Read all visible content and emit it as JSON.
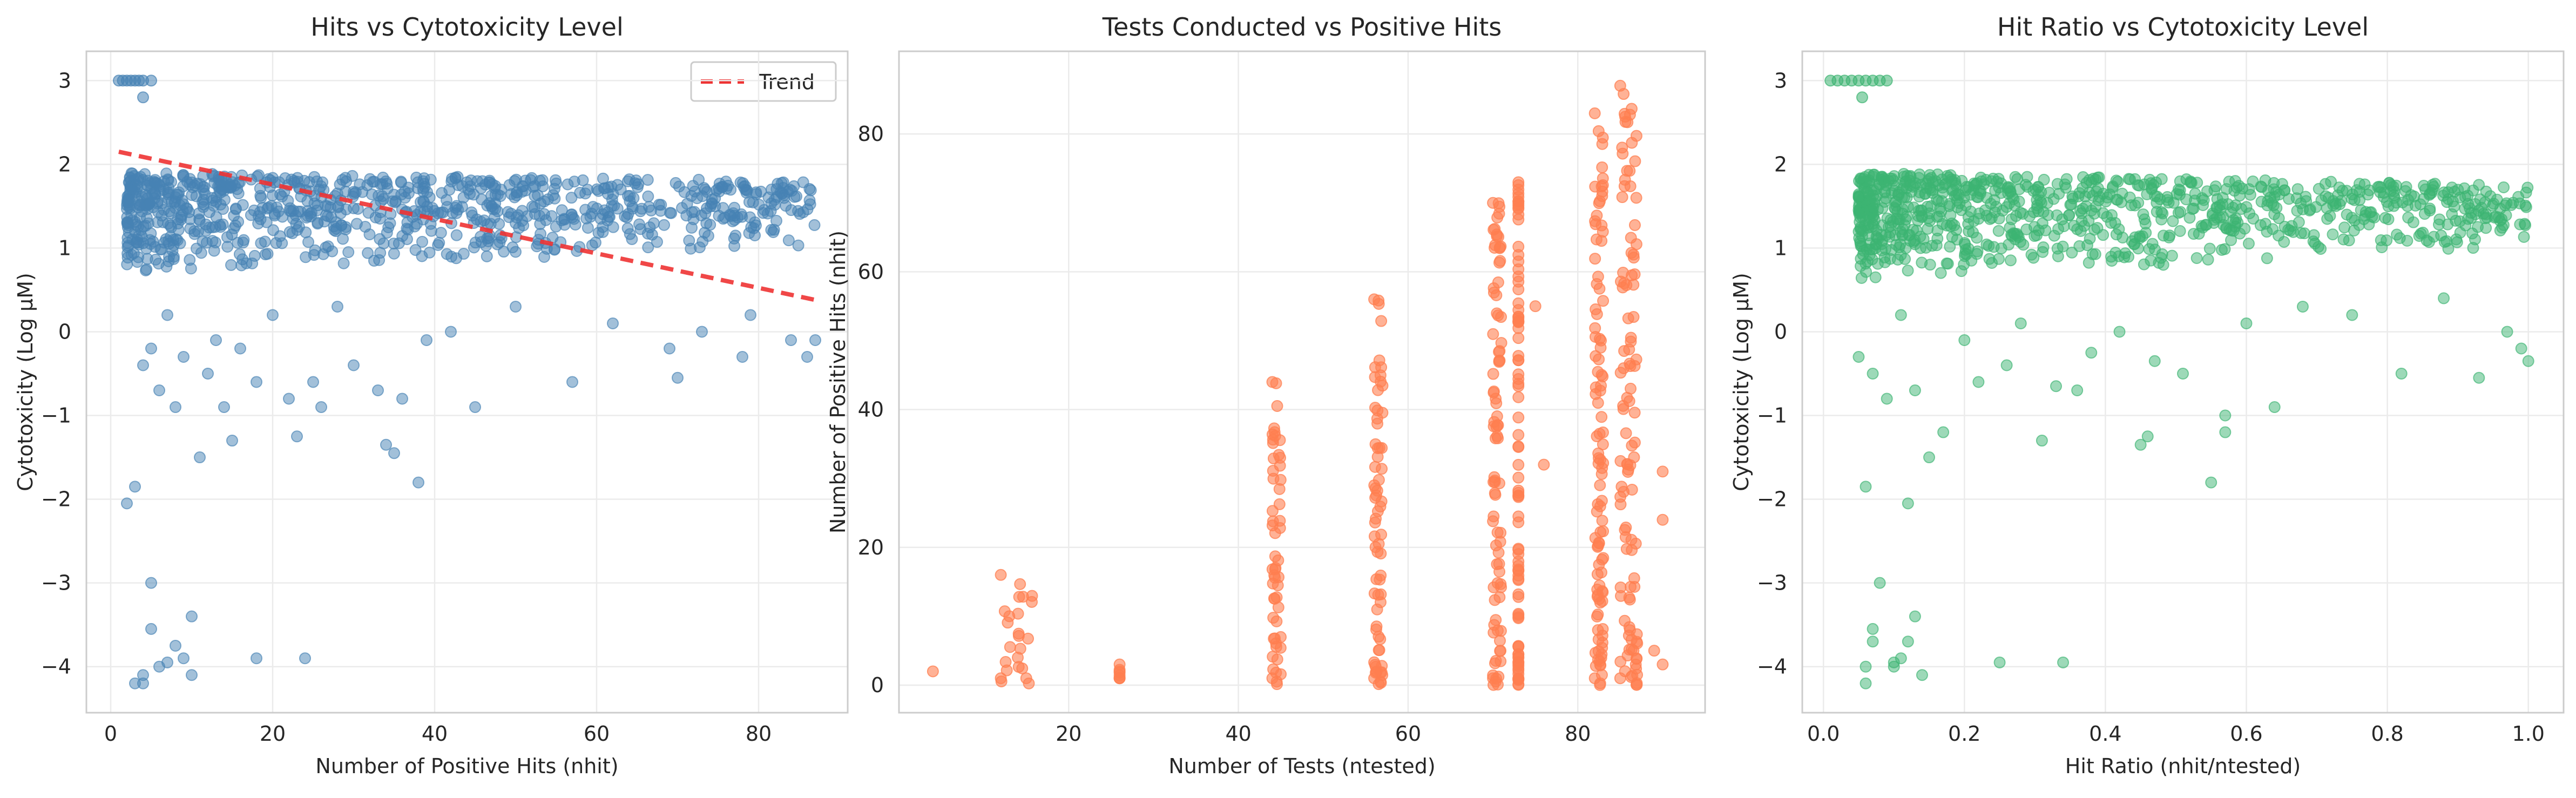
{
  "chart_data": [
    {
      "type": "scatter",
      "title": "Hits vs Cytotoxicity Level",
      "xlabel": "Number of Positive Hits (nhit)",
      "ylabel": "Cytotoxicity (Log µM)",
      "xlim": [
        -3,
        91
      ],
      "ylim": [
        -4.55,
        3.35
      ],
      "xticks": [
        0,
        20,
        40,
        60,
        80
      ],
      "yticks": [
        -4,
        -3,
        -2,
        -1,
        0,
        1,
        2,
        3
      ],
      "grid": true,
      "legend_position": "top-right",
      "point_color": "#4682b4",
      "trend": {
        "name": "Trend",
        "color": "#ee3333",
        "x": [
          1,
          87
        ],
        "y": [
          2.15,
          0.38
        ]
      },
      "points": {
        "capped_top": [
          [
            1,
            3
          ],
          [
            1.5,
            3
          ],
          [
            2,
            3
          ],
          [
            2.5,
            3
          ],
          [
            3,
            3
          ],
          [
            3.5,
            3
          ],
          [
            4,
            3
          ],
          [
            5,
            3
          ],
          [
            4,
            2.8
          ]
        ],
        "cloud": [
          {
            "x_min": 2,
            "x_max": 87,
            "y_top": [
              1.9,
              1.8
            ],
            "y_bottom": [
              0.7,
              1.0
            ]
          }
        ],
        "low_outliers": [
          [
            2,
            -2.05
          ],
          [
            3,
            -1.85
          ],
          [
            4,
            -4.1
          ],
          [
            5,
            -3.0
          ],
          [
            5,
            -3.55
          ],
          [
            3,
            -4.2
          ],
          [
            4,
            -4.2
          ],
          [
            6,
            -4.0
          ],
          [
            7,
            -3.95
          ],
          [
            8,
            -3.75
          ],
          [
            9,
            -3.9
          ],
          [
            10,
            -3.4
          ],
          [
            10,
            -4.1
          ],
          [
            18,
            -3.9
          ],
          [
            24,
            -3.9
          ],
          [
            38,
            -1.8
          ],
          [
            34,
            -1.35
          ],
          [
            35,
            -1.45
          ],
          [
            23,
            -1.25
          ],
          [
            15,
            -1.3
          ]
        ],
        "scattered_mid": [
          [
            4,
            -0.4
          ],
          [
            5,
            -0.2
          ],
          [
            6,
            -0.7
          ],
          [
            7,
            0.2
          ],
          [
            8,
            -0.9
          ],
          [
            9,
            -0.3
          ],
          [
            11,
            -1.5
          ],
          [
            12,
            -0.5
          ],
          [
            13,
            -0.1
          ],
          [
            14,
            -0.9
          ],
          [
            16,
            -0.2
          ],
          [
            18,
            -0.6
          ],
          [
            20,
            0.2
          ],
          [
            22,
            -0.8
          ],
          [
            25,
            -0.6
          ],
          [
            26,
            -0.9
          ],
          [
            28,
            0.3
          ],
          [
            30,
            -0.4
          ],
          [
            33,
            -0.7
          ],
          [
            36,
            -0.8
          ],
          [
            39,
            -0.1
          ],
          [
            42,
            0.0
          ],
          [
            45,
            -0.9
          ],
          [
            50,
            0.3
          ],
          [
            57,
            -0.6
          ],
          [
            62,
            0.1
          ],
          [
            69,
            -0.2
          ],
          [
            70,
            -0.55
          ],
          [
            73,
            0.0
          ],
          [
            78,
            -0.3
          ],
          [
            79,
            0.2
          ],
          [
            84,
            -0.1
          ],
          [
            86,
            -0.3
          ],
          [
            87,
            -0.1
          ]
        ]
      }
    },
    {
      "type": "scatter",
      "title": "Tests Conducted vs Positive Hits",
      "xlabel": "Number of Tests (ntested)",
      "ylabel": "Number of Positive Hits (nhit)",
      "xlim": [
        0,
        95
      ],
      "ylim": [
        -4,
        92
      ],
      "xticks": [
        20,
        40,
        60,
        80
      ],
      "yticks": [
        0,
        20,
        40,
        60,
        80
      ],
      "grid": true,
      "point_color": "#ff7f50",
      "columns": [
        {
          "x": [
            12,
            16
          ],
          "max_hit": 16
        },
        {
          "x": [
            26,
            26
          ],
          "max_hit": 3
        },
        {
          "x": [
            44,
            45
          ],
          "max_hit": 44
        },
        {
          "x": [
            56,
            57
          ],
          "max_hit": 56
        },
        {
          "x": [
            70,
            71
          ],
          "max_hit": 70
        },
        {
          "x": [
            73,
            73
          ],
          "max_hit": 73
        },
        {
          "x": [
            82,
            83
          ],
          "max_hit": 83
        },
        {
          "x": [
            85,
            87
          ],
          "max_hit": 87
        }
      ],
      "extra_points": [
        [
          4,
          2
        ],
        [
          13,
          10
        ],
        [
          14,
          4
        ],
        [
          15,
          1
        ],
        [
          26,
          1
        ],
        [
          26,
          2
        ],
        [
          75,
          55
        ],
        [
          76,
          32
        ],
        [
          89,
          5
        ],
        [
          90,
          31
        ],
        [
          90,
          24
        ],
        [
          90,
          3
        ]
      ]
    },
    {
      "type": "scatter",
      "title": "Hit Ratio vs Cytotoxicity Level",
      "xlabel": "Hit Ratio (nhit/ntested)",
      "ylabel": "Cytotoxicity (Log µM)",
      "xlim": [
        -0.03,
        1.05
      ],
      "ylim": [
        -4.55,
        3.35
      ],
      "xticks": [
        0.0,
        0.2,
        0.4,
        0.6,
        0.8,
        1.0
      ],
      "yticks": [
        -4,
        -3,
        -2,
        -1,
        0,
        1,
        2,
        3
      ],
      "grid": true,
      "point_color": "#3cb371",
      "points": {
        "capped_top": [
          [
            0.01,
            3
          ],
          [
            0.02,
            3
          ],
          [
            0.03,
            3
          ],
          [
            0.04,
            3
          ],
          [
            0.05,
            3
          ],
          [
            0.06,
            3
          ],
          [
            0.07,
            3
          ],
          [
            0.08,
            3
          ],
          [
            0.09,
            3
          ],
          [
            0.055,
            2.8
          ]
        ],
        "cloud": [
          {
            "x_min": 0.05,
            "x_max": 1.0,
            "y_top": [
              1.9,
              1.75
            ],
            "y_bottom": [
              0.6,
              1.0
            ]
          }
        ],
        "low_outliers": [
          [
            0.06,
            -1.85
          ],
          [
            0.12,
            -2.05
          ],
          [
            0.06,
            -4.2
          ],
          [
            0.06,
            -4.0
          ],
          [
            0.07,
            -3.55
          ],
          [
            0.08,
            -3.0
          ],
          [
            0.07,
            -3.7
          ],
          [
            0.1,
            -3.95
          ],
          [
            0.1,
            -4.0
          ],
          [
            0.11,
            -3.9
          ],
          [
            0.12,
            -3.7
          ],
          [
            0.13,
            -3.4
          ],
          [
            0.14,
            -4.1
          ],
          [
            0.25,
            -3.95
          ],
          [
            0.34,
            -3.95
          ],
          [
            0.55,
            -1.8
          ],
          [
            0.45,
            -1.35
          ],
          [
            0.46,
            -1.25
          ],
          [
            0.36,
            -0.7
          ],
          [
            0.31,
            -1.3
          ]
        ],
        "scattered_mid": [
          [
            0.05,
            -0.3
          ],
          [
            0.07,
            -0.5
          ],
          [
            0.09,
            -0.8
          ],
          [
            0.11,
            0.2
          ],
          [
            0.13,
            -0.7
          ],
          [
            0.15,
            -1.5
          ],
          [
            0.17,
            -1.2
          ],
          [
            0.2,
            -0.1
          ],
          [
            0.22,
            -0.6
          ],
          [
            0.26,
            -0.4
          ],
          [
            0.28,
            0.1
          ],
          [
            0.33,
            -0.65
          ],
          [
            0.38,
            -0.25
          ],
          [
            0.42,
            0.0
          ],
          [
            0.47,
            -0.35
          ],
          [
            0.51,
            -0.5
          ],
          [
            0.57,
            -1.0
          ],
          [
            0.57,
            -1.2
          ],
          [
            0.6,
            0.1
          ],
          [
            0.64,
            -0.9
          ],
          [
            0.68,
            0.3
          ],
          [
            0.75,
            0.2
          ],
          [
            0.82,
            -0.5
          ],
          [
            0.88,
            0.4
          ],
          [
            0.93,
            -0.55
          ],
          [
            0.97,
            0.0
          ],
          [
            0.99,
            -0.2
          ],
          [
            1.0,
            -0.35
          ]
        ]
      }
    }
  ]
}
